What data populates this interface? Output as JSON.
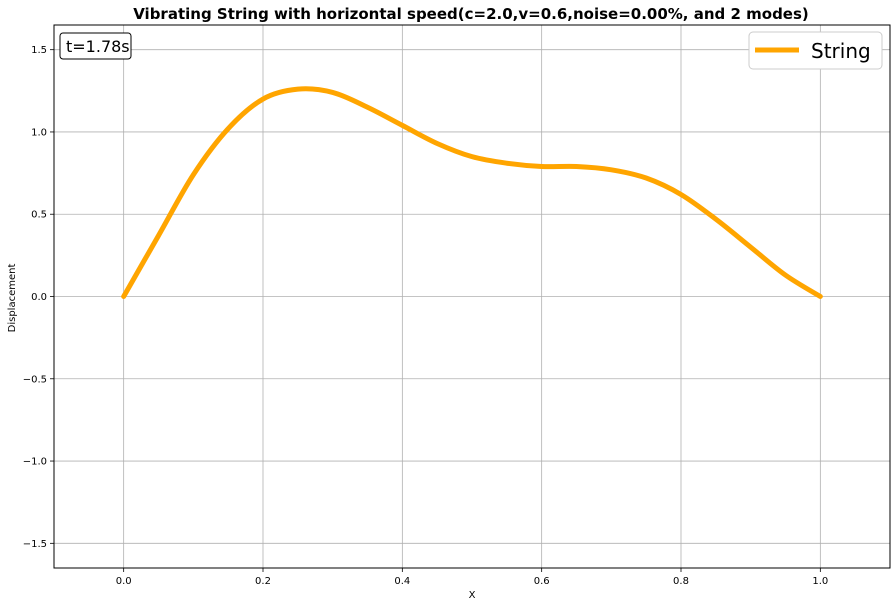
{
  "chart_data": {
    "type": "line",
    "title": "Vibrating String with horizontal speed(c=2.0,v=0.6,noise=0.00%, and 2 modes)",
    "xlabel": "X",
    "ylabel": "Displacement",
    "xlim": [
      -0.1,
      1.1
    ],
    "ylim": [
      -1.65,
      1.65
    ],
    "xticks": [
      0.0,
      0.2,
      0.4,
      0.6,
      0.8,
      1.0
    ],
    "xtick_labels": [
      "0.0",
      "0.2",
      "0.4",
      "0.6",
      "0.8",
      "1.0"
    ],
    "yticks": [
      1.5,
      1.0,
      0.5,
      0.0,
      -0.5,
      -1.0,
      -1.5
    ],
    "ytick_labels": [
      "1.5",
      "1.0",
      "0.5",
      "0.0",
      "−0.5",
      "−1.0",
      "−1.5"
    ],
    "grid": true,
    "legend_position": "top-right",
    "annotation": "t=1.78s",
    "series": [
      {
        "name": "String",
        "color": "#FFA500",
        "x": [
          0.0,
          0.05,
          0.1,
          0.15,
          0.2,
          0.25,
          0.3,
          0.35,
          0.4,
          0.45,
          0.5,
          0.55,
          0.6,
          0.65,
          0.7,
          0.75,
          0.8,
          0.85,
          0.9,
          0.95,
          1.0
        ],
        "y": [
          0.0,
          0.37,
          0.74,
          1.02,
          1.2,
          1.26,
          1.24,
          1.15,
          1.04,
          0.93,
          0.85,
          0.81,
          0.79,
          0.79,
          0.77,
          0.72,
          0.62,
          0.47,
          0.3,
          0.13,
          0.0
        ]
      }
    ]
  }
}
